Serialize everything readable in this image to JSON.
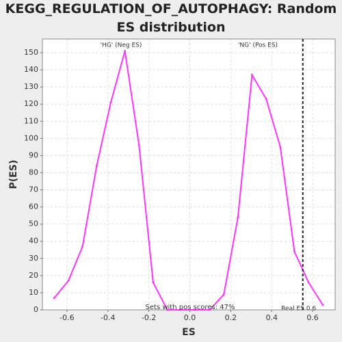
{
  "chart_data": {
    "type": "line",
    "title": "KEGG_REGULATION_OF_AUTOPHAGY: Random ES distribution",
    "x_label": "ES",
    "y_label": "P(ES)",
    "x": [
      -0.662,
      -0.593,
      -0.524,
      -0.455,
      -0.386,
      -0.317,
      -0.248,
      -0.179,
      -0.11,
      -0.041,
      0.028,
      0.097,
      0.166,
      0.235,
      0.304,
      0.373,
      0.442,
      0.511,
      0.58,
      0.649
    ],
    "series": [
      {
        "color": "#ff33ff",
        "values": [
          7,
          17,
          37,
          84,
          121,
          151,
          96,
          16,
          0,
          0,
          0,
          0,
          9,
          54,
          137,
          123,
          95,
          34,
          16,
          3
        ]
      }
    ],
    "xlim": [
      -0.72,
      0.71
    ],
    "ylim": [
      0,
      158
    ],
    "xticks": [
      -0.6,
      -0.4,
      -0.2,
      {
        "value": 0,
        "label": "0.0"
      },
      0.2,
      0.4,
      0.6
    ],
    "yticks": [
      0,
      10,
      20,
      30,
      40,
      50,
      60,
      70,
      80,
      90,
      100,
      110,
      120,
      130,
      140,
      150
    ],
    "grid": true,
    "reference_line": {
      "x": 0.552,
      "label": "Real ES 0.6"
    },
    "annotations": [
      {
        "text": "'HG' (Neg ES)",
        "color": "#0000ff"
      },
      {
        "text": "'NG' (Pos ES)",
        "color": "#ff0000"
      },
      {
        "text": "Sets with pos scores: 47%",
        "color": "#000000"
      }
    ]
  }
}
